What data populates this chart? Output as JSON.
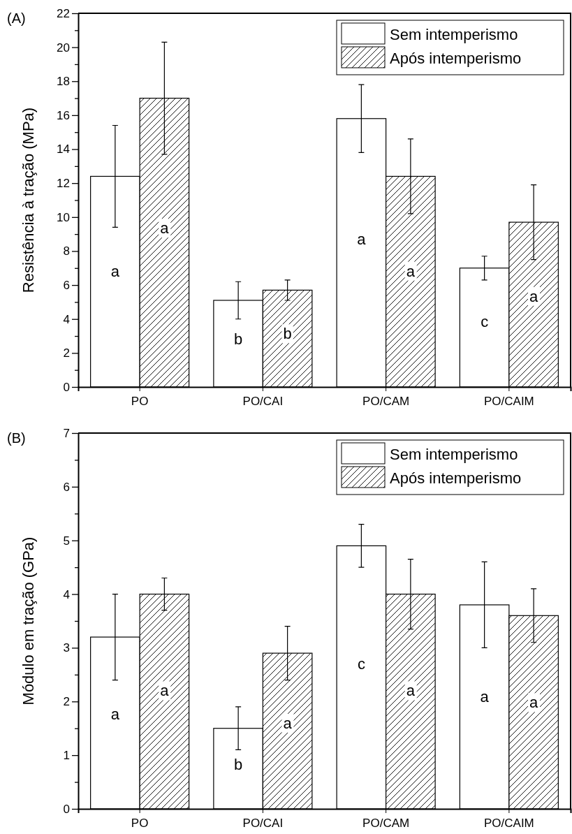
{
  "chart_data": [
    {
      "type": "bar",
      "ylabel": "Resistência à tração (MPa)",
      "annotations": [
        "(A)"
      ],
      "categories": [
        "PO",
        "PO/CAI",
        "PO/CAM",
        "PO/CAIM"
      ],
      "ylim": [
        0,
        22
      ],
      "yticks": [
        0,
        {
          "value": 1,
          "label": null
        },
        2,
        {
          "value": 3,
          "label": null
        },
        4,
        {
          "value": 5,
          "label": null
        },
        6,
        {
          "value": 7,
          "label": null
        },
        8,
        {
          "value": 9,
          "label": null
        },
        10,
        {
          "value": 11,
          "label": null
        },
        12,
        {
          "value": 13,
          "label": null
        },
        14,
        {
          "value": 15,
          "label": null
        },
        16,
        {
          "value": 17,
          "label": null
        },
        18,
        {
          "value": 19,
          "label": null
        },
        20,
        {
          "value": 21,
          "label": null
        },
        22
      ],
      "legend": "top right",
      "grid": false,
      "series": [
        {
          "name": "Sem intemperismo",
          "color": "#ffffff",
          "values": [
            12.4,
            5.1,
            15.8,
            7.0
          ],
          "errors": [
            3.0,
            1.1,
            2.0,
            0.7
          ],
          "value_labels": [
            "a",
            "b",
            "a",
            "c"
          ]
        },
        {
          "name": "Após intemperismo",
          "color": "#000000",
          "values": [
            17.0,
            5.7,
            12.4,
            9.7
          ],
          "errors": [
            3.3,
            0.6,
            2.2,
            2.2
          ],
          "value_labels": [
            "a",
            "b",
            "a",
            "a"
          ]
        }
      ]
    },
    {
      "type": "bar",
      "ylabel": "Módulo em tração (GPa)",
      "annotations": [
        "(B)"
      ],
      "categories": [
        "PO",
        "PO/CAI",
        "PO/CAM",
        "PO/CAIM"
      ],
      "ylim": [
        0,
        7
      ],
      "yticks": [
        0,
        {
          "value": 0.5,
          "label": null
        },
        1,
        {
          "value": 1.5,
          "label": null
        },
        2,
        {
          "value": 2.5,
          "label": null
        },
        3,
        {
          "value": 3.5,
          "label": null
        },
        4,
        {
          "value": 4.5,
          "label": null
        },
        5,
        {
          "value": 5.5,
          "label": null
        },
        6,
        {
          "value": 6.5,
          "label": null
        },
        7
      ],
      "legend": "top right",
      "grid": false,
      "series": [
        {
          "name": "Sem intemperismo",
          "color": "#ffffff",
          "values": [
            3.2,
            1.5,
            4.9,
            3.8
          ],
          "errors": [
            0.8,
            0.4,
            0.4,
            0.8
          ],
          "value_labels": [
            "a",
            "b",
            "c",
            "a"
          ]
        },
        {
          "name": "Após intemperismo",
          "color": "#000000",
          "values": [
            4.0,
            2.9,
            4.0,
            3.6
          ],
          "errors": [
            0.3,
            0.5,
            0.65,
            0.5
          ],
          "value_labels": [
            "a",
            "a",
            "a",
            "a"
          ]
        }
      ]
    }
  ]
}
